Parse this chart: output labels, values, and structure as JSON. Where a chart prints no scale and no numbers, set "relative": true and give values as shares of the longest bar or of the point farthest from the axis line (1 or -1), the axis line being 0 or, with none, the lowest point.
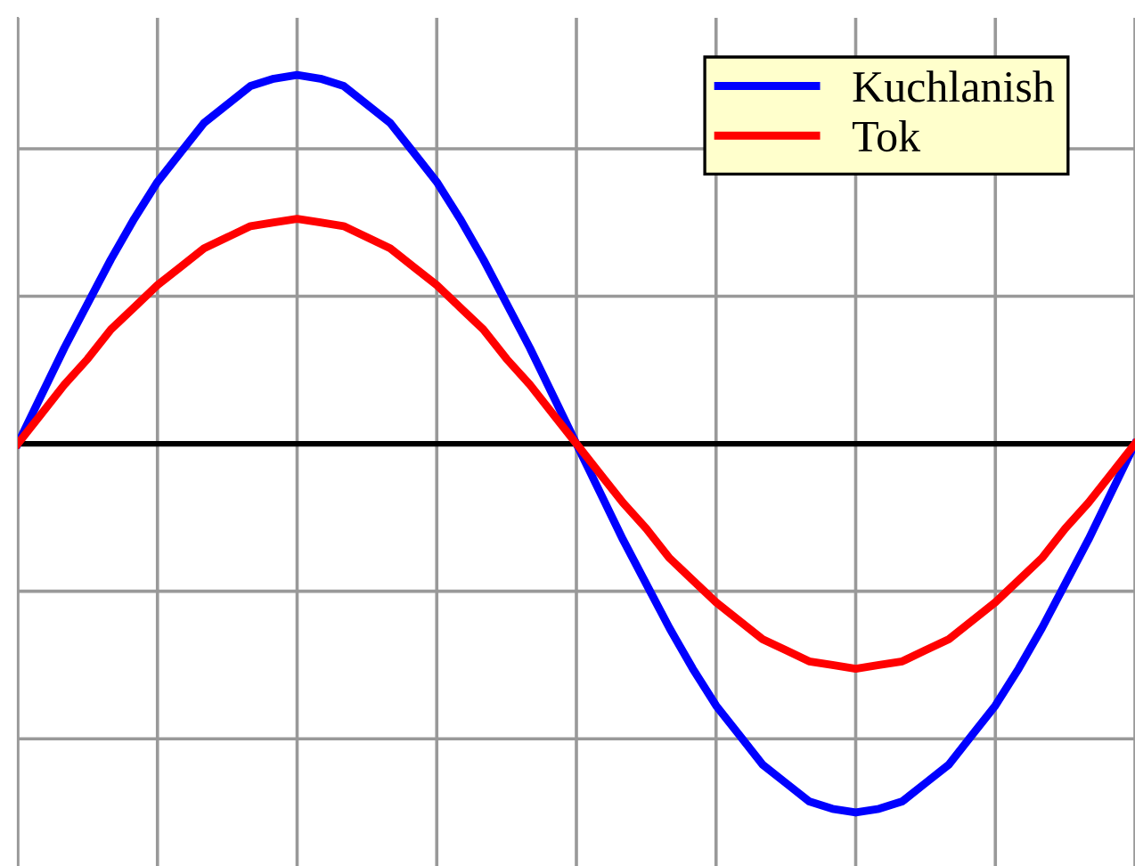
{
  "chart_data": {
    "type": "line",
    "relative": true,
    "grid": true,
    "legend": "top right",
    "marker": "none",
    "line_style": "solid",
    "categories": [
      null,
      null,
      null,
      null,
      null,
      null,
      null,
      null,
      null,
      null,
      null,
      null,
      null,
      null,
      null,
      null,
      null,
      null,
      null,
      null,
      null,
      null,
      null,
      null,
      null,
      null,
      null,
      null,
      null,
      null,
      null,
      null,
      null,
      null,
      null,
      null,
      null,
      null,
      null,
      null,
      null,
      null,
      null,
      null,
      null,
      null,
      null,
      null,
      null
    ],
    "series": [
      {
        "name": "Kuchlanish",
        "color": "#0000ff",
        "values": [
          0,
          0.13,
          0.26,
          0.38,
          0.5,
          0.61,
          0.71,
          0.79,
          0.87,
          0.92,
          0.97,
          0.99,
          1,
          0.99,
          0.97,
          0.92,
          0.87,
          0.79,
          0.71,
          0.61,
          0.5,
          0.38,
          0.26,
          0.13,
          0,
          -0.13,
          -0.26,
          -0.38,
          -0.5,
          -0.61,
          -0.71,
          -0.79,
          -0.87,
          -0.92,
          -0.97,
          -0.99,
          -1,
          -0.99,
          -0.97,
          -0.92,
          -0.87,
          -0.79,
          -0.71,
          -0.61,
          -0.5,
          -0.38,
          -0.26,
          -0.13,
          0
        ]
      },
      {
        "name": "Tok",
        "color": "#ff0000",
        "values": [
          0,
          0.08,
          0.16,
          0.23,
          0.31,
          0.37,
          0.43,
          0.48,
          0.53,
          0.56,
          0.59,
          0.6,
          0.61,
          0.6,
          0.59,
          0.56,
          0.53,
          0.48,
          0.43,
          0.37,
          0.31,
          0.23,
          0.16,
          0.08,
          0,
          -0.08,
          -0.16,
          -0.23,
          -0.31,
          -0.37,
          -0.43,
          -0.48,
          -0.53,
          -0.56,
          -0.59,
          -0.6,
          -0.61,
          -0.6,
          -0.59,
          -0.56,
          -0.53,
          -0.48,
          -0.43,
          -0.37,
          -0.31,
          -0.23,
          -0.16,
          -0.08,
          0
        ]
      }
    ]
  }
}
